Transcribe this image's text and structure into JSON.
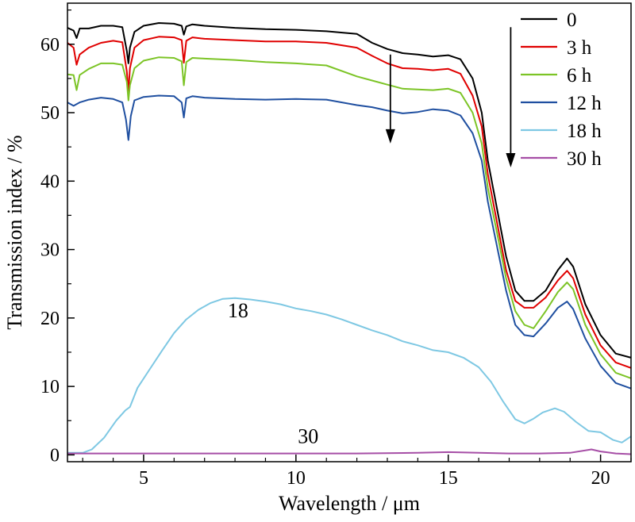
{
  "chart_data": {
    "type": "line",
    "title": "",
    "xlabel": "Wavelength / μm",
    "ylabel": "Transmission index / %",
    "xlim": [
      2.5,
      21
    ],
    "ylim": [
      -1,
      66
    ],
    "x_ticks": [
      5,
      10,
      15,
      20
    ],
    "x_tick_labels": [
      "5",
      "10",
      "15",
      "20"
    ],
    "y_ticks": [
      0,
      10,
      20,
      30,
      40,
      50,
      60
    ],
    "y_tick_labels": [
      "0",
      "10",
      "20",
      "30",
      "40",
      "50",
      "60"
    ],
    "grid": false,
    "legend_position": "top-right",
    "series": [
      {
        "name": "0",
        "color": "#000000",
        "points": [
          [
            2.5,
            62.4
          ],
          [
            2.7,
            62.0
          ],
          [
            2.8,
            60.9
          ],
          [
            2.9,
            62.3
          ],
          [
            3.2,
            62.3
          ],
          [
            3.6,
            62.7
          ],
          [
            4.0,
            62.7
          ],
          [
            4.3,
            62.5
          ],
          [
            4.45,
            59.0
          ],
          [
            4.5,
            57.2
          ],
          [
            4.55,
            59.5
          ],
          [
            4.7,
            61.8
          ],
          [
            5.0,
            62.7
          ],
          [
            5.5,
            63.1
          ],
          [
            6.0,
            63.0
          ],
          [
            6.25,
            62.7
          ],
          [
            6.32,
            61.4
          ],
          [
            6.4,
            62.6
          ],
          [
            6.6,
            62.9
          ],
          [
            7,
            62.7
          ],
          [
            8,
            62.4
          ],
          [
            9,
            62.2
          ],
          [
            10,
            62.1
          ],
          [
            11,
            61.9
          ],
          [
            12.0,
            61.5
          ],
          [
            12.5,
            60.2
          ],
          [
            13,
            59.3
          ],
          [
            13.5,
            58.7
          ],
          [
            14,
            58.5
          ],
          [
            14.5,
            58.2
          ],
          [
            15,
            58.4
          ],
          [
            15.4,
            57.8
          ],
          [
            15.8,
            55.0
          ],
          [
            16.1,
            50.0
          ],
          [
            16.3,
            43.0
          ],
          [
            16.6,
            36.0
          ],
          [
            16.9,
            29.0
          ],
          [
            17.2,
            24.0
          ],
          [
            17.5,
            22.5
          ],
          [
            17.8,
            22.5
          ],
          [
            18.2,
            24.0
          ],
          [
            18.6,
            27.0
          ],
          [
            18.9,
            28.7
          ],
          [
            19.1,
            27.5
          ],
          [
            19.5,
            22.0
          ],
          [
            20.0,
            17.5
          ],
          [
            20.5,
            14.8
          ],
          [
            21,
            14.2
          ]
        ]
      },
      {
        "name": "3 h",
        "color": "#e00000",
        "points": [
          [
            2.5,
            60.2
          ],
          [
            2.7,
            59.5
          ],
          [
            2.8,
            57.0
          ],
          [
            2.9,
            58.5
          ],
          [
            3.2,
            59.5
          ],
          [
            3.6,
            60.2
          ],
          [
            4.0,
            60.5
          ],
          [
            4.3,
            60.3
          ],
          [
            4.45,
            56.0
          ],
          [
            4.5,
            53.0
          ],
          [
            4.55,
            56.5
          ],
          [
            4.7,
            59.5
          ],
          [
            5.0,
            60.6
          ],
          [
            5.5,
            61.1
          ],
          [
            6.0,
            61.0
          ],
          [
            6.25,
            60.6
          ],
          [
            6.32,
            57.3
          ],
          [
            6.4,
            60.5
          ],
          [
            6.6,
            61.0
          ],
          [
            7,
            60.8
          ],
          [
            8,
            60.6
          ],
          [
            9,
            60.4
          ],
          [
            10,
            60.4
          ],
          [
            11,
            60.2
          ],
          [
            12.0,
            59.5
          ],
          [
            12.5,
            58.3
          ],
          [
            13,
            57.2
          ],
          [
            13.5,
            56.5
          ],
          [
            14,
            56.4
          ],
          [
            14.5,
            56.2
          ],
          [
            15,
            56.4
          ],
          [
            15.4,
            55.7
          ],
          [
            15.8,
            52.5
          ],
          [
            16.1,
            48.0
          ],
          [
            16.3,
            41.0
          ],
          [
            16.6,
            34.0
          ],
          [
            16.9,
            27.0
          ],
          [
            17.2,
            22.5
          ],
          [
            17.5,
            21.5
          ],
          [
            17.8,
            21.5
          ],
          [
            18.2,
            23.0
          ],
          [
            18.6,
            25.5
          ],
          [
            18.9,
            26.9
          ],
          [
            19.1,
            25.8
          ],
          [
            19.5,
            20.5
          ],
          [
            20.0,
            16.0
          ],
          [
            20.5,
            13.5
          ],
          [
            21,
            12.7
          ]
        ]
      },
      {
        "name": "6 h",
        "color": "#7cc426",
        "points": [
          [
            2.5,
            55.6
          ],
          [
            2.7,
            55.5
          ],
          [
            2.8,
            53.3
          ],
          [
            2.9,
            55.5
          ],
          [
            3.2,
            56.4
          ],
          [
            3.6,
            57.2
          ],
          [
            4.0,
            57.2
          ],
          [
            4.3,
            57.0
          ],
          [
            4.45,
            54.5
          ],
          [
            4.5,
            51.8
          ],
          [
            4.55,
            54.0
          ],
          [
            4.7,
            56.5
          ],
          [
            5.0,
            57.6
          ],
          [
            5.5,
            58.1
          ],
          [
            6.0,
            58.0
          ],
          [
            6.25,
            57.5
          ],
          [
            6.32,
            54.0
          ],
          [
            6.4,
            57.4
          ],
          [
            6.6,
            58.0
          ],
          [
            7,
            57.9
          ],
          [
            8,
            57.7
          ],
          [
            9,
            57.4
          ],
          [
            10,
            57.2
          ],
          [
            11,
            56.9
          ],
          [
            12.0,
            55.3
          ],
          [
            12.5,
            54.7
          ],
          [
            13,
            54.1
          ],
          [
            13.5,
            53.5
          ],
          [
            14,
            53.4
          ],
          [
            14.5,
            53.3
          ],
          [
            15,
            53.5
          ],
          [
            15.4,
            52.9
          ],
          [
            15.8,
            50.0
          ],
          [
            16.1,
            45.5
          ],
          [
            16.3,
            39.0
          ],
          [
            16.6,
            32.5
          ],
          [
            16.9,
            25.8
          ],
          [
            17.2,
            21.0
          ],
          [
            17.5,
            19.0
          ],
          [
            17.8,
            18.5
          ],
          [
            18.2,
            21.0
          ],
          [
            18.6,
            23.8
          ],
          [
            18.9,
            25.2
          ],
          [
            19.1,
            24.2
          ],
          [
            19.5,
            19.0
          ],
          [
            20.0,
            14.7
          ],
          [
            20.5,
            12.0
          ],
          [
            21,
            11.2
          ]
        ]
      },
      {
        "name": "12 h",
        "color": "#1f4fa0",
        "points": [
          [
            2.5,
            51.5
          ],
          [
            2.7,
            51.0
          ],
          [
            2.9,
            51.5
          ],
          [
            3.2,
            51.9
          ],
          [
            3.6,
            52.2
          ],
          [
            4.0,
            52.0
          ],
          [
            4.3,
            51.5
          ],
          [
            4.42,
            49.0
          ],
          [
            4.5,
            46.0
          ],
          [
            4.58,
            49.5
          ],
          [
            4.7,
            51.8
          ],
          [
            5.0,
            52.3
          ],
          [
            5.5,
            52.5
          ],
          [
            6.0,
            52.4
          ],
          [
            6.25,
            51.5
          ],
          [
            6.32,
            49.3
          ],
          [
            6.4,
            52.1
          ],
          [
            6.6,
            52.4
          ],
          [
            7,
            52.2
          ],
          [
            8,
            52.0
          ],
          [
            9,
            51.9
          ],
          [
            10,
            52.0
          ],
          [
            11,
            51.9
          ],
          [
            12.0,
            51.1
          ],
          [
            12.5,
            50.8
          ],
          [
            13,
            50.3
          ],
          [
            13.5,
            49.9
          ],
          [
            14,
            50.1
          ],
          [
            14.5,
            50.5
          ],
          [
            15,
            50.3
          ],
          [
            15.4,
            49.6
          ],
          [
            15.8,
            47.0
          ],
          [
            16.1,
            43.0
          ],
          [
            16.3,
            37.0
          ],
          [
            16.6,
            30.5
          ],
          [
            16.9,
            24.0
          ],
          [
            17.2,
            19.0
          ],
          [
            17.5,
            17.5
          ],
          [
            17.8,
            17.3
          ],
          [
            18.2,
            19.2
          ],
          [
            18.6,
            21.5
          ],
          [
            18.9,
            22.4
          ],
          [
            19.1,
            21.3
          ],
          [
            19.5,
            17.0
          ],
          [
            20.0,
            13.0
          ],
          [
            20.5,
            10.5
          ],
          [
            21,
            9.7
          ]
        ]
      },
      {
        "name": "18 h",
        "color": "#7ec8e3",
        "points": [
          [
            2.5,
            0.3
          ],
          [
            3.0,
            0.3
          ],
          [
            3.3,
            0.8
          ],
          [
            3.7,
            2.5
          ],
          [
            4.1,
            5.0
          ],
          [
            4.4,
            6.5
          ],
          [
            4.55,
            7.0
          ],
          [
            4.8,
            9.8
          ],
          [
            5.2,
            12.5
          ],
          [
            5.6,
            15.2
          ],
          [
            6.0,
            17.8
          ],
          [
            6.4,
            19.8
          ],
          [
            6.8,
            21.2
          ],
          [
            7.2,
            22.2
          ],
          [
            7.6,
            22.8
          ],
          [
            8.0,
            22.9
          ],
          [
            8.5,
            22.7
          ],
          [
            9.0,
            22.4
          ],
          [
            9.5,
            22.0
          ],
          [
            10,
            21.4
          ],
          [
            10.5,
            21.0
          ],
          [
            11,
            20.5
          ],
          [
            11.5,
            19.8
          ],
          [
            12,
            19.0
          ],
          [
            12.5,
            18.2
          ],
          [
            13,
            17.5
          ],
          [
            13.5,
            16.6
          ],
          [
            14,
            16.0
          ],
          [
            14.5,
            15.3
          ],
          [
            15,
            15.0
          ],
          [
            15.5,
            14.2
          ],
          [
            16.0,
            12.8
          ],
          [
            16.4,
            10.7
          ],
          [
            16.8,
            7.8
          ],
          [
            17.2,
            5.2
          ],
          [
            17.5,
            4.6
          ],
          [
            17.8,
            5.3
          ],
          [
            18.1,
            6.2
          ],
          [
            18.5,
            6.8
          ],
          [
            18.8,
            6.3
          ],
          [
            19.2,
            4.8
          ],
          [
            19.6,
            3.5
          ],
          [
            20.0,
            3.3
          ],
          [
            20.4,
            2.2
          ],
          [
            20.7,
            1.8
          ],
          [
            21,
            2.7
          ]
        ]
      },
      {
        "name": "30 h",
        "color": "#a64ea6",
        "points": [
          [
            2.5,
            0.2
          ],
          [
            4,
            0.2
          ],
          [
            6,
            0.2
          ],
          [
            8,
            0.2
          ],
          [
            10,
            0.2
          ],
          [
            12,
            0.2
          ],
          [
            14,
            0.3
          ],
          [
            15,
            0.4
          ],
          [
            16,
            0.3
          ],
          [
            17,
            0.2
          ],
          [
            18,
            0.2
          ],
          [
            19,
            0.3
          ],
          [
            19.7,
            0.8
          ],
          [
            20,
            0.5
          ],
          [
            20.5,
            0.2
          ],
          [
            21,
            0.1
          ]
        ]
      }
    ],
    "annotations": [
      {
        "text": "18",
        "x": 8.1,
        "y": 20.1
      },
      {
        "text": "30",
        "x": 10.4,
        "y": 1.7
      }
    ],
    "arrows": [
      {
        "x": 13.1,
        "y_from": 58.5,
        "y_to": 45.5
      },
      {
        "x": 17.05,
        "y_from": 62.5,
        "y_to": 42.0
      }
    ]
  }
}
